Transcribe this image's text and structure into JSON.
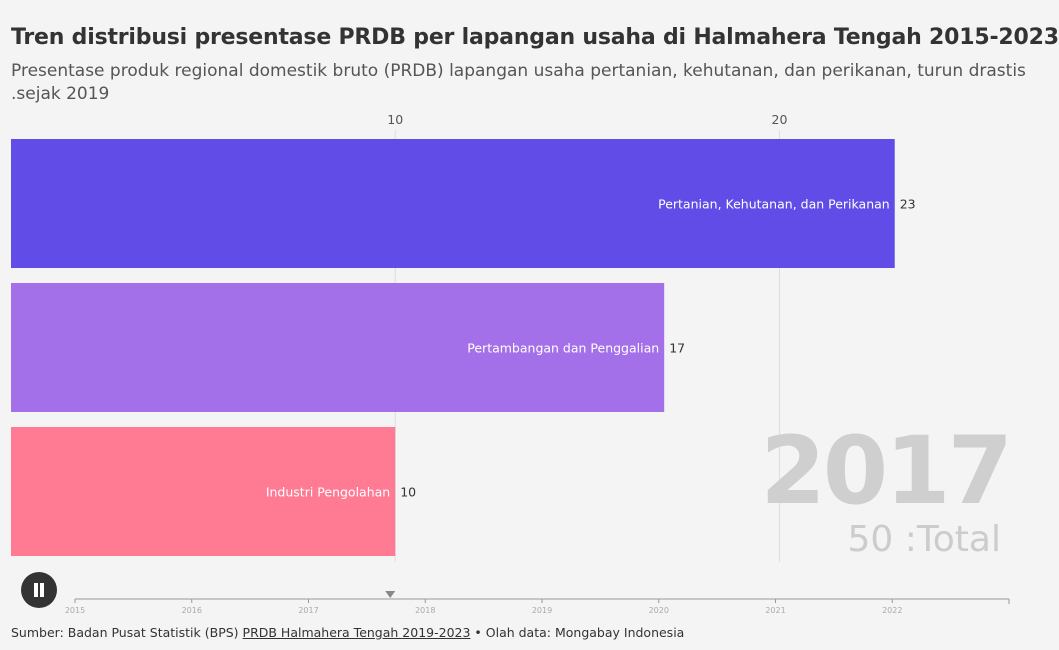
{
  "header": {
    "title": "Tren distribusi presentase PRDB per lapangan usaha di Halmahera Tengah 2015-2023",
    "subtitle_line1": "Presentase produk regional domestik bruto (PRDB) lapangan usaha pertanian, kehutanan, dan perikanan, turun drastis",
    "subtitle_line2": ".sejak 2019"
  },
  "current": {
    "year": "2017",
    "total_label": "50 :Total"
  },
  "timeline": {
    "years": [
      "2015",
      "2016",
      "2017",
      "2018",
      "2019",
      "2020",
      "2021",
      "2022"
    ],
    "current_position_year": 2017.7
  },
  "footer": {
    "source_prefix": "Sumber: Badan Pusat Statistik (BPS) ",
    "source_link": "PRDB Halmahera Tengah 2019-2023",
    "source_suffix": " • Olah data: Mongabay Indonesia"
  },
  "colors": {
    "bar_1": "#5b45e6",
    "bar_2": "#a06ae8",
    "bar_3": "#ff7690",
    "grid": "#dddddd",
    "axis_text": "#555555"
  },
  "controls": {
    "play_state_icon": "pause-icon"
  },
  "chart_data": {
    "type": "bar",
    "orientation": "horizontal",
    "categories": [
      "Pertanian, Kehutanan, dan Perikanan",
      "Pertambangan dan Penggalian",
      "Industri Pengolahan"
    ],
    "values": [
      23,
      17,
      10
    ],
    "value_labels": [
      "23",
      "17",
      "10"
    ],
    "xlim": [
      0,
      26
    ],
    "xticks": [
      10,
      20
    ],
    "xtick_labels": [
      "10",
      "20"
    ],
    "grid": true
  }
}
